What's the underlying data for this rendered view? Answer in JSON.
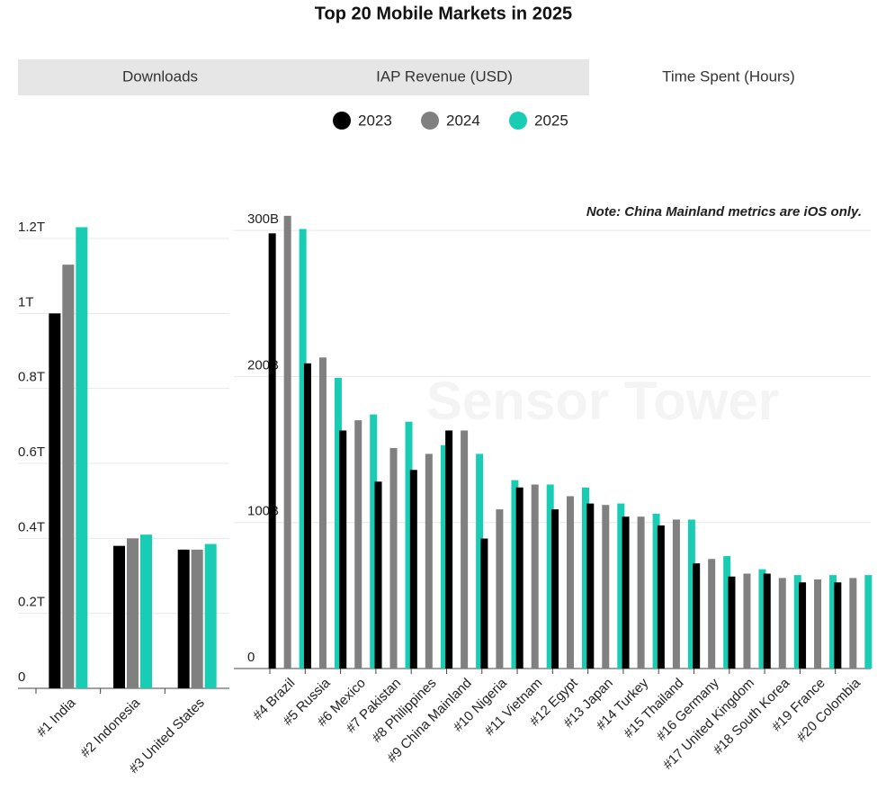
{
  "title": "Top 20 Mobile Markets in 2025",
  "tabs": [
    "Downloads",
    "IAP Revenue (USD)",
    "Time Spent (Hours)"
  ],
  "watermark": "Sensor Tower",
  "chart_data": {
    "type": "bar",
    "note": "Note: China Mainland metrics are iOS only.",
    "series": [
      {
        "name": "2023",
        "color": "#000000"
      },
      {
        "name": "2024",
        "color": "#808080"
      },
      {
        "name": "2025",
        "color": "#19cdb4"
      }
    ],
    "panels": [
      {
        "categories": [
          "#1 India",
          "#2 Indonesia",
          "#3 United States"
        ],
        "ylim": [
          0,
          1.26
        ],
        "yticks": [
          0,
          {
            "value": 0.2,
            "label": "0.2T"
          },
          {
            "value": 0.4,
            "label": "0.4T"
          },
          {
            "value": 0.6,
            "label": "0.6T"
          },
          {
            "value": 0.8,
            "label": "0.8T"
          },
          {
            "value": 1,
            "label": "1T"
          },
          {
            "value": 1.2,
            "label": "1.2T"
          }
        ],
        "series": [
          {
            "values": [
              1.0,
              0.38,
              0.37
            ]
          },
          {
            "values": [
              1.13,
              0.4,
              0.37
            ]
          },
          {
            "values": [
              1.23,
              0.41,
              0.385
            ]
          }
        ]
      },
      {
        "categories": [
          "#4 Brazil",
          "#5 Russia",
          "#6 Mexico",
          "#7 Pakistan",
          "#8 Philippines",
          "#9 China Mainland",
          "#10 Nigeria",
          "#11 Vietnam",
          "#12 Egypt",
          "#13 Japan",
          "#14 Turkey",
          "#15 Thailand",
          "#16 Germany",
          "#17 United Kingdom",
          "#18 South Korea",
          "#19 France",
          "#20 Colombia"
        ],
        "ylim": [
          0,
          313
        ],
        "yticks": [
          0,
          {
            "value": 100,
            "label": "100B"
          },
          {
            "value": 200,
            "label": "200B"
          },
          {
            "value": 300,
            "label": "300B"
          }
        ],
        "series": [
          {
            "values": [
              298,
              209,
              163,
              128,
              136,
              163,
              89,
              124,
              109,
              113,
              104,
              98,
              72,
              63,
              65,
              59,
              59
            ]
          },
          {
            "values": [
              310,
              213,
              170,
              151,
              147,
              163,
              109,
              126,
              118,
              112,
              104,
              102,
              75,
              65,
              62,
              61,
              62
            ]
          },
          {
            "values": [
              301,
              199,
              174,
              169,
              153,
              147,
              129,
              126,
              124,
              113,
              106,
              102,
              77,
              68,
              64,
              64,
              64
            ]
          }
        ]
      }
    ]
  }
}
